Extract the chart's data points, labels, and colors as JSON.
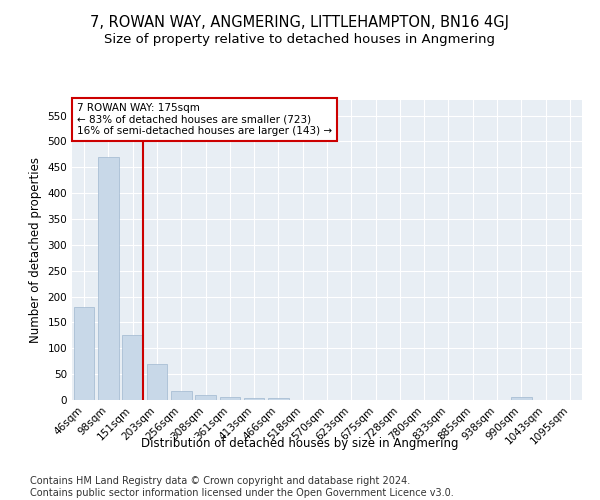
{
  "title": "7, ROWAN WAY, ANGMERING, LITTLEHAMPTON, BN16 4GJ",
  "subtitle": "Size of property relative to detached houses in Angmering",
  "xlabel": "Distribution of detached houses by size in Angmering",
  "ylabel": "Number of detached properties",
  "footer_line1": "Contains HM Land Registry data © Crown copyright and database right 2024.",
  "footer_line2": "Contains public sector information licensed under the Open Government Licence v3.0.",
  "categories": [
    "46sqm",
    "98sqm",
    "151sqm",
    "203sqm",
    "256sqm",
    "308sqm",
    "361sqm",
    "413sqm",
    "466sqm",
    "518sqm",
    "570sqm",
    "623sqm",
    "675sqm",
    "728sqm",
    "780sqm",
    "833sqm",
    "885sqm",
    "938sqm",
    "990sqm",
    "1043sqm",
    "1095sqm"
  ],
  "values": [
    180,
    470,
    125,
    70,
    18,
    10,
    6,
    4,
    4,
    0,
    0,
    0,
    0,
    0,
    0,
    0,
    0,
    0,
    5,
    0,
    0
  ],
  "bar_color": "#c8d8e8",
  "bar_edge_color": "#a0b8d0",
  "vline_x_index": 2,
  "vline_color": "#cc0000",
  "annotation_text": "7 ROWAN WAY: 175sqm\n← 83% of detached houses are smaller (723)\n16% of semi-detached houses are larger (143) →",
  "annotation_box_color": "#ffffff",
  "annotation_box_edge_color": "#cc0000",
  "ylim": [
    0,
    580
  ],
  "yticks": [
    0,
    50,
    100,
    150,
    200,
    250,
    300,
    350,
    400,
    450,
    500,
    550
  ],
  "background_color": "#e8eef4",
  "grid_color": "#ffffff",
  "title_fontsize": 10.5,
  "subtitle_fontsize": 9.5,
  "axis_label_fontsize": 8.5,
  "tick_fontsize": 7.5,
  "footer_fontsize": 7
}
